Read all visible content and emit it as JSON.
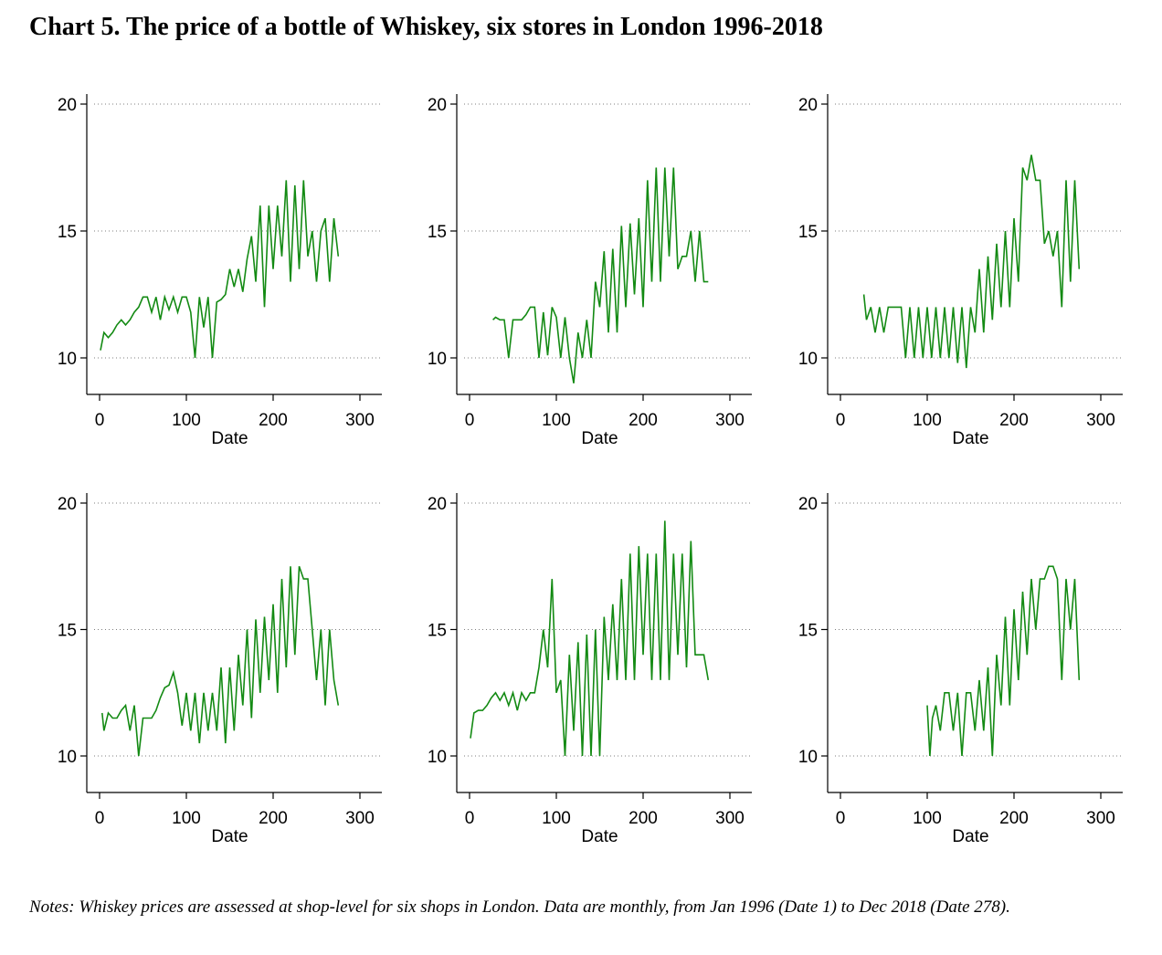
{
  "title": "Chart 5.  The price of a bottle of Whiskey, six stores in London 1996-2018",
  "notes": "Notes: Whiskey prices are assessed at shop-level for six shops in London. Data are monthly, from Jan 1996 (Date 1) to Dec 2018 (Date 278).",
  "colors": {
    "line": "#138a13",
    "axis": "#000000",
    "grid": "#7f7f7f"
  },
  "chart_data": [
    {
      "type": "line",
      "xlabel": "Date",
      "ylabel": "",
      "xlim": [
        0,
        300
      ],
      "ylim": [
        10,
        20
      ],
      "xticks": [
        0,
        100,
        200,
        300
      ],
      "yticks": [
        10,
        15,
        20
      ],
      "grid": "dotted horizontal",
      "series": [
        {
          "x": [
            1,
            5,
            10,
            15,
            20,
            25,
            30,
            35,
            40,
            45,
            50,
            55,
            60,
            65,
            70,
            75,
            80,
            85,
            90,
            95,
            100,
            105,
            110,
            115,
            120,
            125,
            130,
            135,
            140,
            145,
            150,
            155,
            160,
            165,
            170,
            175,
            180,
            185,
            190,
            195,
            200,
            205,
            210,
            215,
            220,
            225,
            230,
            235,
            240,
            245,
            250,
            255,
            260,
            265,
            270,
            275
          ],
          "y": [
            10.3,
            11,
            10.8,
            11,
            11.3,
            11.5,
            11.3,
            11.5,
            11.8,
            12,
            12.4,
            12.4,
            11.8,
            12.4,
            11.5,
            12.4,
            11.9,
            12.4,
            11.8,
            12.4,
            12.4,
            11.8,
            10,
            12.4,
            11.2,
            12.4,
            10,
            12.2,
            12.3,
            12.5,
            13.5,
            12.8,
            13.5,
            12.6,
            13.9,
            14.8,
            13,
            16,
            12,
            16,
            13.5,
            16,
            14,
            17,
            13,
            16.8,
            13.5,
            17,
            14,
            15,
            13,
            15,
            15.5,
            13,
            15.5,
            14
          ]
        }
      ]
    },
    {
      "type": "line",
      "xlabel": "Date",
      "ylabel": "",
      "xlim": [
        0,
        300
      ],
      "ylim": [
        10,
        20
      ],
      "xticks": [
        0,
        100,
        200,
        300
      ],
      "yticks": [
        10,
        15,
        20
      ],
      "grid": "dotted horizontal",
      "series": [
        {
          "x": [
            27,
            30,
            35,
            40,
            45,
            50,
            55,
            60,
            65,
            70,
            75,
            80,
            85,
            90,
            95,
            100,
            105,
            110,
            115,
            120,
            125,
            130,
            135,
            140,
            145,
            150,
            155,
            160,
            165,
            170,
            175,
            180,
            185,
            190,
            195,
            200,
            205,
            210,
            215,
            220,
            225,
            230,
            235,
            240,
            245,
            250,
            255,
            260,
            265,
            270,
            275
          ],
          "y": [
            11.5,
            11.6,
            11.5,
            11.5,
            10,
            11.5,
            11.5,
            11.5,
            11.7,
            12,
            12,
            10,
            11.8,
            10.1,
            12,
            11.6,
            10,
            11.6,
            10,
            9,
            11,
            10,
            11.5,
            10,
            13,
            12,
            14.2,
            11,
            14.3,
            11,
            15.2,
            12,
            15.3,
            12.5,
            15.5,
            12,
            17,
            13,
            17.5,
            13,
            17.5,
            14,
            17.5,
            13.5,
            14,
            14,
            15,
            13,
            15,
            13,
            13
          ]
        }
      ]
    },
    {
      "type": "line",
      "xlabel": "Date",
      "ylabel": "",
      "xlim": [
        0,
        300
      ],
      "ylim": [
        10,
        20
      ],
      "xticks": [
        0,
        100,
        200,
        300
      ],
      "yticks": [
        10,
        15,
        20
      ],
      "grid": "dotted horizontal",
      "series": [
        {
          "x": [
            27,
            30,
            35,
            40,
            45,
            50,
            55,
            60,
            65,
            70,
            75,
            80,
            85,
            90,
            95,
            100,
            105,
            110,
            115,
            120,
            125,
            130,
            135,
            140,
            145,
            150,
            155,
            160,
            165,
            170,
            175,
            180,
            185,
            190,
            195,
            200,
            205,
            210,
            215,
            220,
            225,
            230,
            235,
            240,
            245,
            250,
            255,
            260,
            265,
            270,
            275
          ],
          "y": [
            12.5,
            11.5,
            12,
            11,
            12,
            11,
            12,
            12,
            12,
            12,
            10,
            12,
            10,
            12,
            10,
            12,
            10,
            12,
            10,
            12,
            10,
            12,
            9.8,
            12,
            9.6,
            12,
            11,
            13.5,
            11,
            14,
            11.5,
            14.5,
            12,
            15,
            12,
            15.5,
            13,
            17.5,
            17,
            18,
            17,
            17,
            14.5,
            15,
            14,
            15,
            12,
            17,
            13,
            17,
            13.5
          ]
        }
      ]
    },
    {
      "type": "line",
      "xlabel": "Date",
      "ylabel": "",
      "xlim": [
        0,
        300
      ],
      "ylim": [
        10,
        20
      ],
      "xticks": [
        0,
        100,
        200,
        300
      ],
      "yticks": [
        10,
        15,
        20
      ],
      "grid": "dotted horizontal",
      "series": [
        {
          "x": [
            3,
            5,
            10,
            15,
            20,
            25,
            30,
            35,
            40,
            45,
            50,
            55,
            60,
            65,
            70,
            75,
            80,
            85,
            90,
            95,
            100,
            105,
            110,
            115,
            120,
            125,
            130,
            135,
            140,
            145,
            150,
            155,
            160,
            165,
            170,
            175,
            180,
            185,
            190,
            195,
            200,
            205,
            210,
            215,
            220,
            225,
            230,
            235,
            240,
            245,
            250,
            255,
            260,
            265,
            270,
            275
          ],
          "y": [
            11.7,
            11,
            11.7,
            11.5,
            11.5,
            11.8,
            12,
            11,
            12,
            10,
            11.5,
            11.5,
            11.5,
            11.8,
            12.3,
            12.7,
            12.8,
            13.3,
            12.5,
            11.2,
            12.5,
            11,
            12.5,
            10.5,
            12.5,
            11,
            12.5,
            11,
            13.5,
            10.5,
            13.5,
            11,
            14,
            12,
            15,
            11.5,
            15.4,
            12.5,
            15.5,
            13,
            16,
            12.5,
            17,
            13.5,
            17.5,
            14,
            17.5,
            17,
            17,
            15,
            13,
            15,
            12,
            15,
            13,
            12
          ]
        }
      ]
    },
    {
      "type": "line",
      "xlabel": "Date",
      "ylabel": "",
      "xlim": [
        0,
        300
      ],
      "ylim": [
        10,
        20
      ],
      "xticks": [
        0,
        100,
        200,
        300
      ],
      "yticks": [
        10,
        15,
        20
      ],
      "grid": "dotted horizontal",
      "series": [
        {
          "x": [
            1,
            5,
            10,
            15,
            20,
            25,
            30,
            35,
            40,
            45,
            50,
            55,
            60,
            65,
            70,
            75,
            80,
            85,
            90,
            95,
            100,
            105,
            110,
            115,
            120,
            125,
            130,
            135,
            140,
            145,
            150,
            155,
            160,
            165,
            170,
            175,
            180,
            185,
            190,
            195,
            200,
            205,
            210,
            215,
            220,
            225,
            230,
            235,
            240,
            245,
            250,
            255,
            260,
            265,
            270,
            275
          ],
          "y": [
            10.7,
            11.7,
            11.8,
            11.8,
            12,
            12.3,
            12.5,
            12.2,
            12.5,
            12,
            12.5,
            11.8,
            12.5,
            12.2,
            12.5,
            12.5,
            13.5,
            15,
            13.5,
            17,
            12.5,
            13,
            10,
            14,
            11,
            14.5,
            10,
            14.8,
            10,
            15,
            10,
            15.5,
            13,
            16,
            13,
            17,
            13,
            18,
            13,
            18.3,
            14,
            18,
            13,
            18,
            13,
            19.3,
            13,
            18,
            14,
            18,
            13.5,
            18.5,
            14,
            14,
            14,
            13
          ]
        }
      ]
    },
    {
      "type": "line",
      "xlabel": "Date",
      "ylabel": "",
      "xlim": [
        0,
        300
      ],
      "ylim": [
        10,
        20
      ],
      "xticks": [
        0,
        100,
        200,
        300
      ],
      "yticks": [
        10,
        15,
        20
      ],
      "grid": "dotted horizontal",
      "series": [
        {
          "x": [
            100,
            103,
            106,
            110,
            115,
            120,
            125,
            130,
            135,
            140,
            145,
            150,
            155,
            160,
            165,
            170,
            175,
            180,
            185,
            190,
            195,
            200,
            205,
            210,
            215,
            220,
            225,
            230,
            235,
            240,
            245,
            250,
            255,
            260,
            265,
            270,
            275
          ],
          "y": [
            12,
            10,
            11.5,
            12,
            11,
            12.5,
            12.5,
            11,
            12.5,
            10,
            12.5,
            12.5,
            11,
            13,
            11,
            13.5,
            10,
            14,
            12,
            15.5,
            12,
            15.8,
            13,
            16.5,
            14,
            17,
            15,
            17,
            17,
            17.5,
            17.5,
            17,
            13,
            17,
            15,
            17,
            13
          ]
        }
      ]
    }
  ]
}
